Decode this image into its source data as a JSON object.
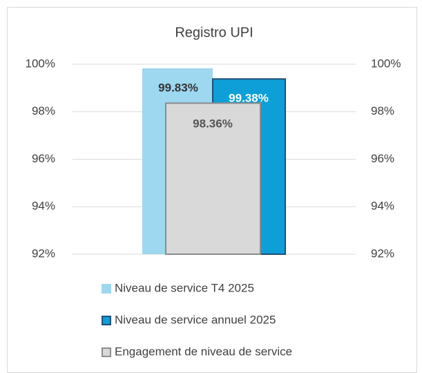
{
  "chart_data": {
    "type": "bar",
    "title": "Registro UPI",
    "series": [
      {
        "name": "Niveau de service T4 2025",
        "color": "#9dd7f0",
        "values": [
          99.83
        ],
        "value_labels": [
          "99.83%"
        ]
      },
      {
        "name": "Niveau de service annuel 2025",
        "color": "#0e9fd8",
        "values": [
          99.38
        ],
        "value_labels": [
          "99.38%"
        ],
        "axis": "y2"
      },
      {
        "name": "Engagement de niveau de service",
        "color": "#d9d9d9",
        "values": [
          98.36
        ],
        "value_labels": [
          "98.36%"
        ]
      }
    ],
    "ylim": [
      92,
      100
    ],
    "yticks": [
      {
        "value": 92,
        "label": "92%"
      },
      {
        "value": 94,
        "label": "94%"
      },
      {
        "value": 96,
        "label": "96%"
      },
      {
        "value": 98,
        "label": "98%"
      },
      {
        "value": 100,
        "label": "100%"
      }
    ],
    "y2lim": [
      92,
      100
    ],
    "y2ticks": [
      {
        "value": 92,
        "label": "92%"
      },
      {
        "value": 94,
        "label": "94%"
      },
      {
        "value": 96,
        "label": "96%"
      },
      {
        "value": 98,
        "label": "98%"
      },
      {
        "value": 100,
        "label": "100%"
      }
    ],
    "grid": true,
    "legend": "bottom"
  }
}
